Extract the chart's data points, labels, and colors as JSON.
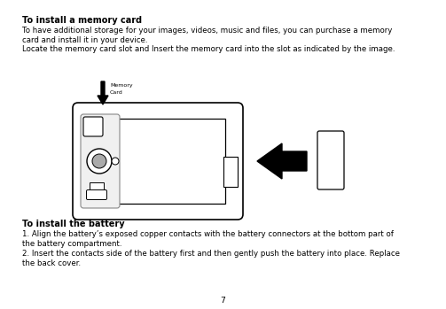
{
  "bg_color": "#ffffff",
  "page_number": "7",
  "title1": "To install a memory card",
  "body1_line1": "To have additional storage for your images, videos, music and files, you can purchase a memory",
  "body1_line2": "card and install it in your device.",
  "body1_line3": "Locate the memory card slot and Insert the memory card into the slot as indicated by the image.",
  "title2": "To install the battery",
  "body2_line1": "1. Align the battery’s exposed copper contacts with the battery connectors at the bottom part of",
  "body2_line2": "the battery compartment.",
  "body2_line3": "2. Insert the contacts side of the battery first and then gently push the battery into place. Replace",
  "body2_line4": "the back cover.",
  "memory_label_line1": "Memory",
  "memory_label_line2": "Card",
  "text_color": "#000000",
  "title_font_size": 7.0,
  "body_font_size": 6.2,
  "label_font_size": 4.5
}
